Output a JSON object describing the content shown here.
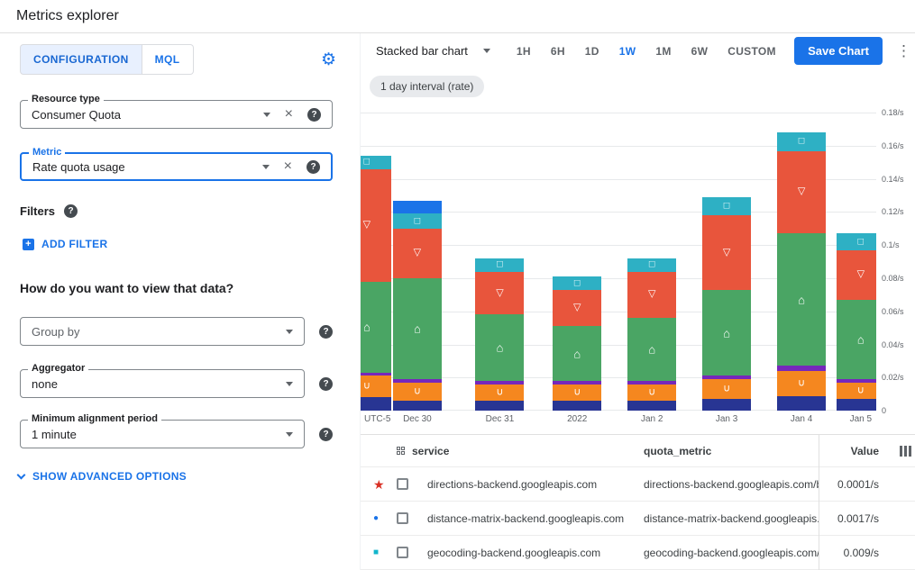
{
  "header": {
    "title": "Metrics explorer"
  },
  "config_panel": {
    "tabs": [
      {
        "label": "CONFIGURATION",
        "active": true
      },
      {
        "label": "MQL",
        "active": false
      }
    ],
    "resource_type": {
      "label": "Resource type",
      "value": "Consumer Quota"
    },
    "metric": {
      "label": "Metric",
      "value": "Rate quota usage"
    },
    "filters_label": "Filters",
    "add_filter_label": "ADD FILTER",
    "view_question": "How do you want to view that data?",
    "group_by": {
      "placeholder": "Group by"
    },
    "aggregator": {
      "label": "Aggregator",
      "value": "none"
    },
    "min_alignment": {
      "label": "Minimum alignment period",
      "value": "1 minute"
    },
    "advanced_options_label": "SHOW ADVANCED OPTIONS"
  },
  "toolbar": {
    "chart_type_label": "Stacked bar chart",
    "ranges": [
      "1H",
      "6H",
      "1D",
      "1W",
      "1M",
      "6W",
      "CUSTOM"
    ],
    "active_range": "1W",
    "save_label": "Save Chart"
  },
  "chart": {
    "interval_chip": "1 day interval (rate)"
  },
  "chart_data": {
    "type": "bar",
    "stacked": true,
    "title": "",
    "xlabel": "",
    "ylabel": "",
    "ylim": [
      0,
      0.185
    ],
    "grid": true,
    "x_axis_prefix": "UTC-5",
    "yticks": [
      {
        "value": 0.18,
        "label": "0.18/s"
      },
      {
        "value": 0.16,
        "label": "0.16/s"
      },
      {
        "value": 0.14,
        "label": "0.14/s"
      },
      {
        "value": 0.12,
        "label": "0.12/s"
      },
      {
        "value": 0.1,
        "label": "0.1/s"
      },
      {
        "value": 0.08,
        "label": "0.08/s"
      },
      {
        "value": 0.06,
        "label": "0.06/s"
      },
      {
        "value": 0.04,
        "label": "0.04/s"
      },
      {
        "value": 0.02,
        "label": "0.02/s"
      },
      {
        "value": 0,
        "label": "0"
      }
    ],
    "categories": [
      "",
      "Dec 30",
      "Dec 31",
      "2022",
      "Jan 2",
      "Jan 3",
      "Jan 4",
      "Jan 5"
    ],
    "bar_centers_pct": [
      1.2,
      11,
      27,
      42,
      56.5,
      71,
      85.5,
      97
    ],
    "series": [
      {
        "name": "navy",
        "color": "#283593",
        "marker": "",
        "values": [
          0.008,
          0.006,
          0.006,
          0.006,
          0.006,
          0.007,
          0.009,
          0.007
        ]
      },
      {
        "name": "orange",
        "color": "#f5871f",
        "marker": "∪",
        "values": [
          0.013,
          0.011,
          0.01,
          0.01,
          0.01,
          0.012,
          0.015,
          0.01
        ]
      },
      {
        "name": "purple",
        "color": "#7627bb",
        "marker": "",
        "values": [
          0.002,
          0.002,
          0.002,
          0.002,
          0.002,
          0.002,
          0.003,
          0.002
        ]
      },
      {
        "name": "green",
        "color": "#4aa564",
        "marker": "⌂",
        "values": [
          0.055,
          0.061,
          0.04,
          0.033,
          0.038,
          0.052,
          0.08,
          0.048
        ]
      },
      {
        "name": "red",
        "color": "#e8553c",
        "marker": "▽",
        "values": [
          0.068,
          0.03,
          0.026,
          0.022,
          0.028,
          0.045,
          0.05,
          0.03
        ]
      },
      {
        "name": "teal",
        "color": "#2eb0c4",
        "marker": "□",
        "values": [
          0.008,
          0.009,
          0.008,
          0.008,
          0.008,
          0.011,
          0.011,
          0.01
        ]
      },
      {
        "name": "blue",
        "color": "#1a73e8",
        "marker": "",
        "values": [
          0,
          0.008,
          0,
          0,
          0,
          0,
          0,
          0
        ]
      }
    ]
  },
  "table": {
    "headers": {
      "service": "service",
      "quota_metric": "quota_metric",
      "value": "Value"
    },
    "rows": [
      {
        "marker": "star",
        "marker_color": "#d93025",
        "service": "directions-backend.googleapis.com",
        "quota_metric": "directions-backend.googleapis.com/billabl",
        "value": "0.0001/s"
      },
      {
        "marker": "circle",
        "marker_color": "#1a73e8",
        "service": "distance-matrix-backend.googleapis.com",
        "quota_metric": "distance-matrix-backend.googleapis.com/l",
        "value": "0.0017/s"
      },
      {
        "marker": "square",
        "marker_color": "#12b5cb",
        "service": "geocoding-backend.googleapis.com",
        "quota_metric": "geocoding-backend.googleapis.com/billab",
        "value": "0.009/s"
      }
    ]
  },
  "colors": {
    "accent": "#1a73e8"
  }
}
